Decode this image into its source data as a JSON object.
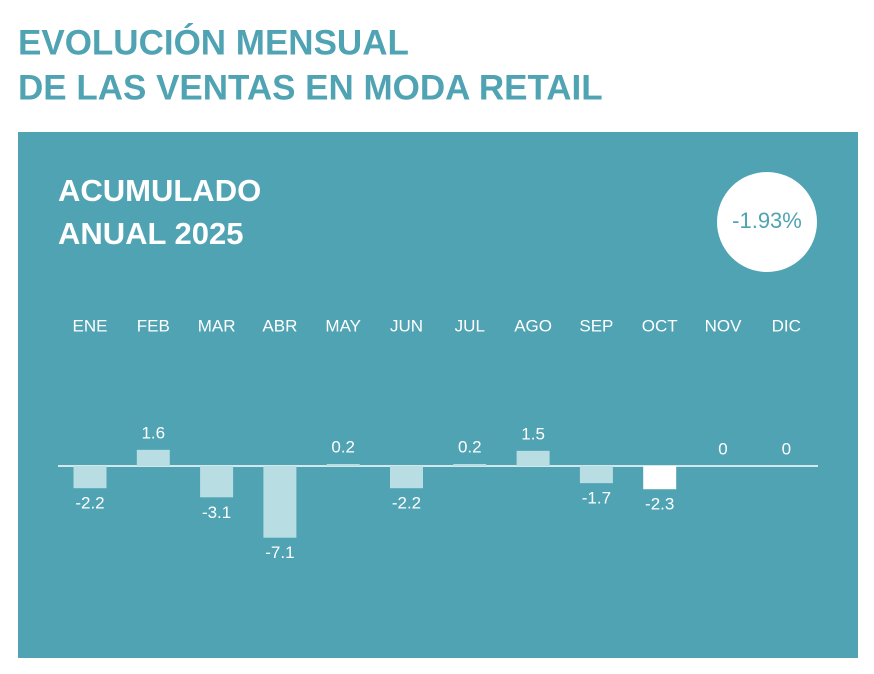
{
  "chart_data": {
    "type": "bar",
    "title": [
      "EVOLUCIÓN MENSUAL",
      "DE LAS VENTAS EN MODA RETAIL"
    ],
    "subtitle": [
      "ACUMULADO",
      "ANUAL 2025"
    ],
    "annotation": "-1.93%",
    "categories": [
      "ENE",
      "FEB",
      "MAR",
      "ABR",
      "MAY",
      "JUN",
      "JUL",
      "AGO",
      "SEP",
      "OCT",
      "NOV",
      "DIC"
    ],
    "values": [
      -2.2,
      1.6,
      -3.1,
      -7.1,
      0.2,
      -2.2,
      0.2,
      1.5,
      -1.7,
      -2.3,
      0,
      0
    ],
    "colors": [
      "#b8dde3",
      "#b8dde3",
      "#b8dde3",
      "#b8dde3",
      "#b8dde3",
      "#b8dde3",
      "#b8dde3",
      "#b8dde3",
      "#b8dde3",
      "#ffffff",
      "#b8dde3",
      "#b8dde3"
    ]
  }
}
